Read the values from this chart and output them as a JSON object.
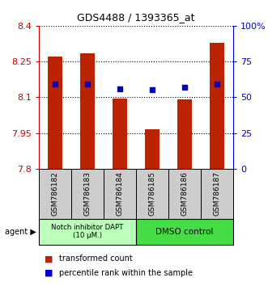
{
  "title": "GDS4488 / 1393365_at",
  "samples": [
    "GSM786182",
    "GSM786183",
    "GSM786184",
    "GSM786185",
    "GSM786186",
    "GSM786187"
  ],
  "bar_values": [
    8.27,
    8.285,
    8.095,
    7.965,
    8.09,
    8.33
  ],
  "percentile_values": [
    8.155,
    8.155,
    8.135,
    8.133,
    8.143,
    8.155
  ],
  "ylim": [
    7.8,
    8.4
  ],
  "y_ticks": [
    7.8,
    7.95,
    8.1,
    8.25,
    8.4
  ],
  "y_tick_labels": [
    "7.8",
    "7.95",
    "8.1",
    "8.25",
    "8.4"
  ],
  "y2_ticks": [
    0,
    25,
    50,
    75,
    100
  ],
  "y2_tick_labels": [
    "0",
    "25",
    "50",
    "75",
    "100%"
  ],
  "bar_color": "#bb2200",
  "percentile_color": "#0000cc",
  "agent_groups": [
    {
      "label": "Notch inhibitor DAPT\n(10 μM.)",
      "cols": 3,
      "color": "#bbffbb"
    },
    {
      "label": "DMSO control",
      "cols": 3,
      "color": "#44dd44"
    }
  ],
  "left_tick_color": "#cc0000",
  "right_tick_color": "#0000cc",
  "legend_items": [
    {
      "color": "#bb2200",
      "label": "transformed count"
    },
    {
      "color": "#0000cc",
      "label": "percentile rank within the sample"
    }
  ],
  "xtick_bg": "#cccccc",
  "agent_label": "agent"
}
